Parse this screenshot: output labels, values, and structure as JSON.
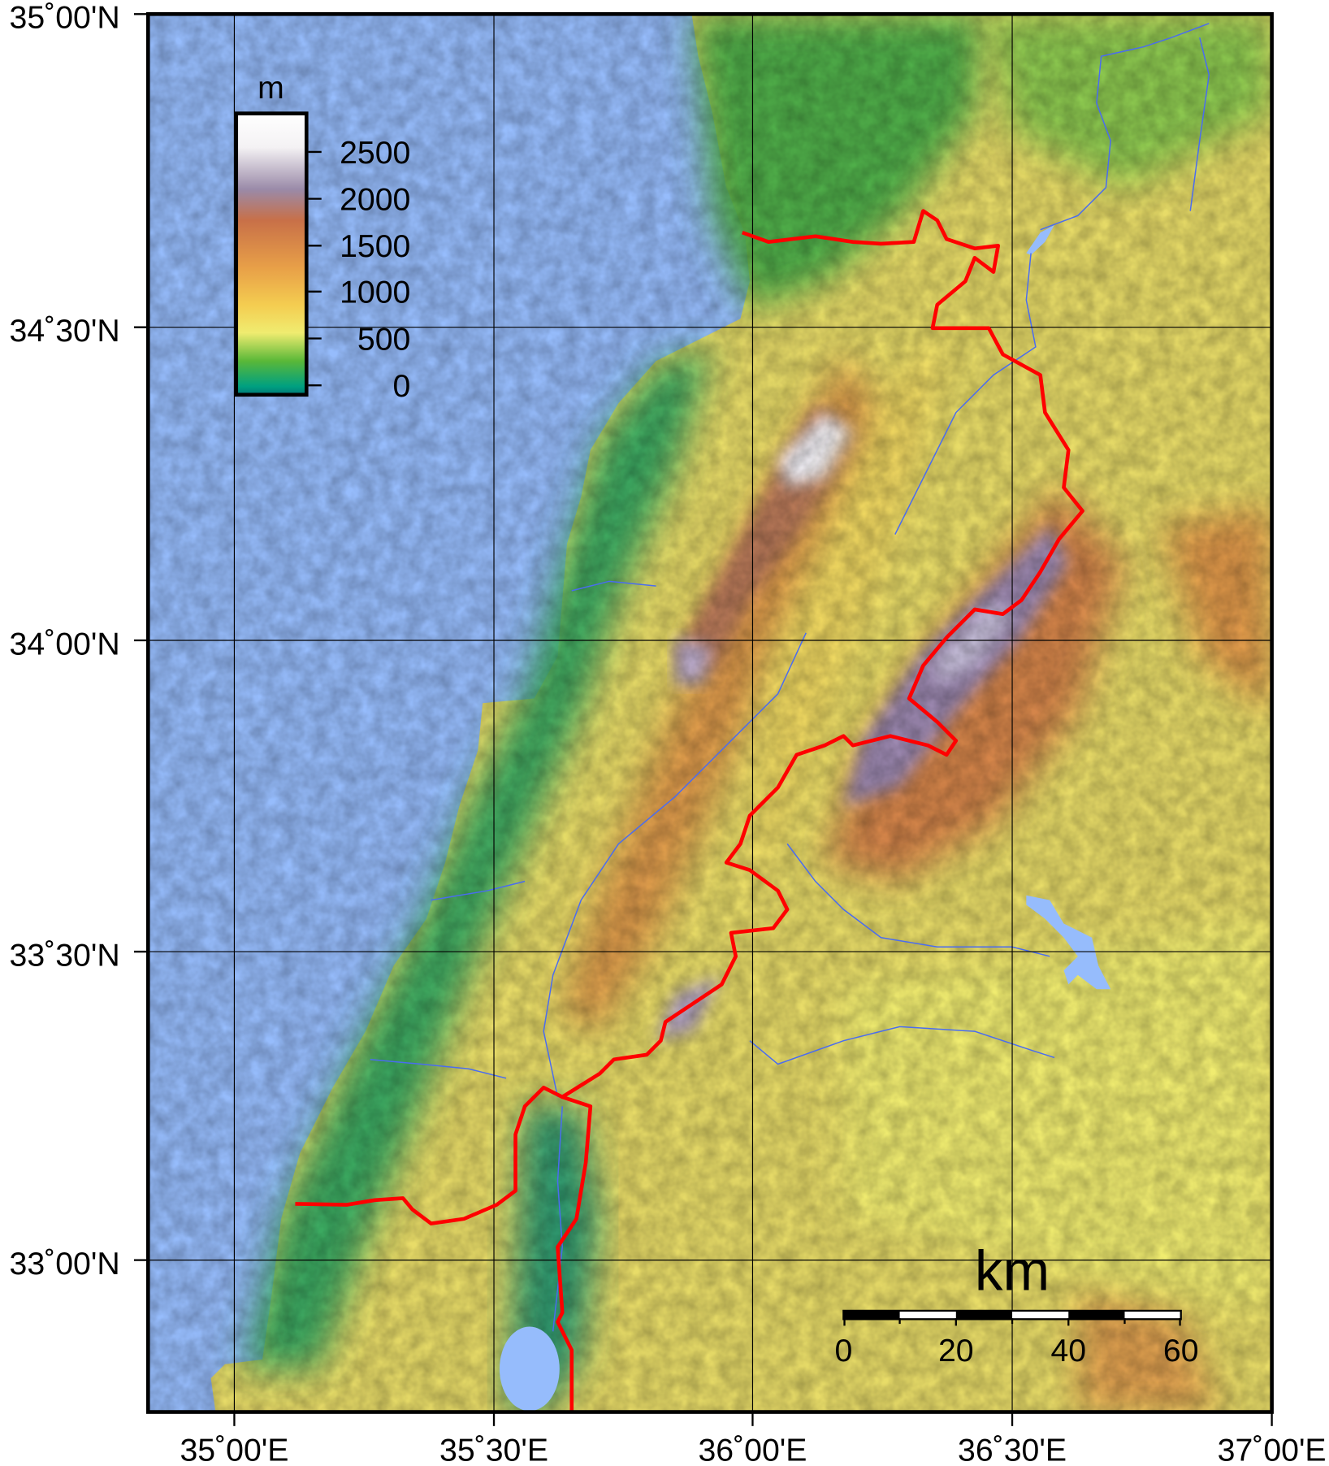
{
  "map": {
    "latitude_labels": [
      "35˚00'N",
      "34˚30'N",
      "34˚00'N",
      "33˚30'N",
      "33˚00'N"
    ],
    "longitude_labels": [
      "35˚00'E",
      "35˚30'E",
      "36˚00'E",
      "36˚30'E",
      "37˚00'E"
    ],
    "colors": {
      "sea": "#96bcfc",
      "border": "#ff0000",
      "rivers": "#4a6cf0",
      "lowland": "#2fa860",
      "midland": "#f0e070",
      "highland": "#c87048",
      "peaks": "#ffffff"
    }
  },
  "elevation_legend": {
    "unit": "m",
    "ticks": [
      "2500",
      "2000",
      "1500",
      "1000",
      "500",
      "0"
    ],
    "gradient": [
      "#ffffff",
      "#9a8aa8",
      "#c87048",
      "#f2b848",
      "#f0ec70",
      "#5ab838",
      "#009080"
    ]
  },
  "scale_bar": {
    "unit": "km",
    "labels": [
      "0",
      "20",
      "40",
      "60"
    ]
  }
}
